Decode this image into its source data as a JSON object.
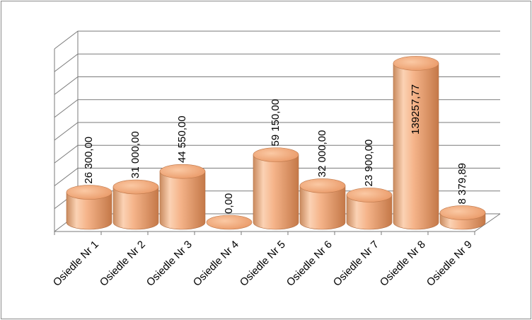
{
  "chart_data": {
    "type": "bar",
    "style": "3d-cylinder",
    "title": "",
    "xlabel": "",
    "ylabel": "",
    "categories": [
      "Osiedle Nr 1",
      "Osiedle Nr 2",
      "Osiedle Nr 3",
      "Osiedle Nr 4",
      "Osiedle Nr 5",
      "Osiedle Nr 6",
      "Osiedle Nr 7",
      "Osiedle Nr 8",
      "Osiedle Nr 9"
    ],
    "values": [
      26300.0,
      31000.0,
      44550.0,
      0.0,
      59150.0,
      32000.0,
      23900.0,
      139257.77,
      8379.89
    ],
    "data_labels": [
      "26 300,00",
      "31 000,00",
      "44 550,00",
      "0,00",
      "59 150,00",
      "32 000,00",
      "23 900,00",
      "139257,77",
      "8 379,89"
    ],
    "ylim": [
      0,
      160000
    ],
    "y_tick_step": 20000,
    "y_tick_labels_shown": false,
    "grid": true,
    "legend": "none",
    "colors": {
      "bar": "#f4ae82",
      "bar_light": "#fde0c8",
      "bar_dark": "#c77a48",
      "grid": "#7a7a7a"
    }
  }
}
